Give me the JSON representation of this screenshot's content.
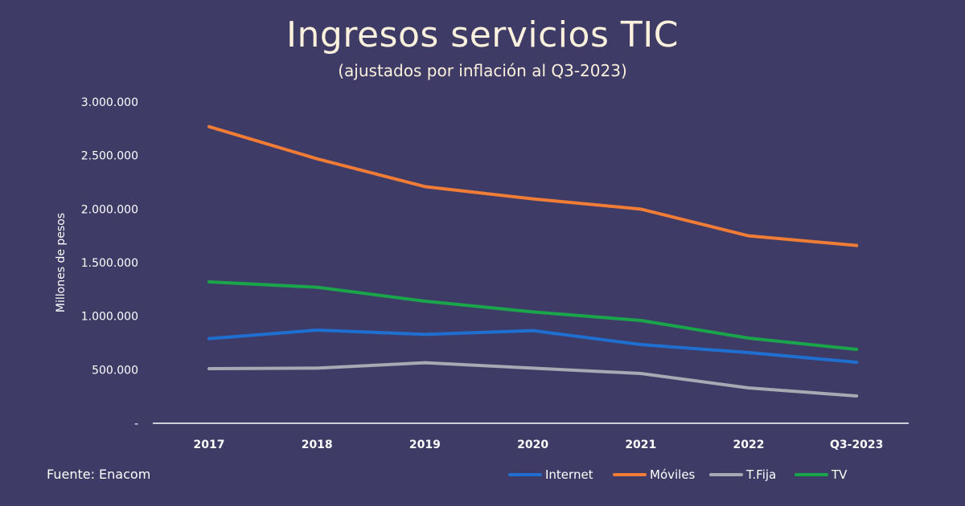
{
  "title": "Ingresos servicios TIC",
  "subtitle": "(ajustados por inflación al Q3-2023)",
  "source": "Fuente: Enacom",
  "chart_data": {
    "type": "line",
    "title": "Ingresos servicios TIC",
    "subtitle": "(ajustados por inflación al Q3-2023)",
    "xlabel": "",
    "ylabel": "Millones de pesos",
    "categories": [
      "2017",
      "2018",
      "2019",
      "2020",
      "2021",
      "2022",
      "Q3-2023"
    ],
    "ylim": [
      0,
      3000000
    ],
    "yticks": [
      0,
      500000,
      1000000,
      1500000,
      2000000,
      2500000,
      3000000
    ],
    "ytick_labels": [
      "-",
      "500.000",
      "1.000.000",
      "1.500.000",
      "2.000.000",
      "2.500.000",
      "3.000.000"
    ],
    "grid": false,
    "legend_position": "bottom-right",
    "series": [
      {
        "name": "Internet",
        "color": "#1f6fd1",
        "values": [
          790000,
          870000,
          830000,
          865000,
          735000,
          660000,
          570000
        ]
      },
      {
        "name": "Móviles",
        "color": "#f07c36",
        "values": [
          2770000,
          2470000,
          2210000,
          2095000,
          2000000,
          1750000,
          1660000
        ]
      },
      {
        "name": "T.Fija",
        "color": "#a9a9b3",
        "values": [
          510000,
          515000,
          565000,
          515000,
          465000,
          330000,
          255000
        ]
      },
      {
        "name": "TV",
        "color": "#1aa54b",
        "values": [
          1320000,
          1270000,
          1140000,
          1040000,
          960000,
          795000,
          690000
        ]
      }
    ]
  }
}
